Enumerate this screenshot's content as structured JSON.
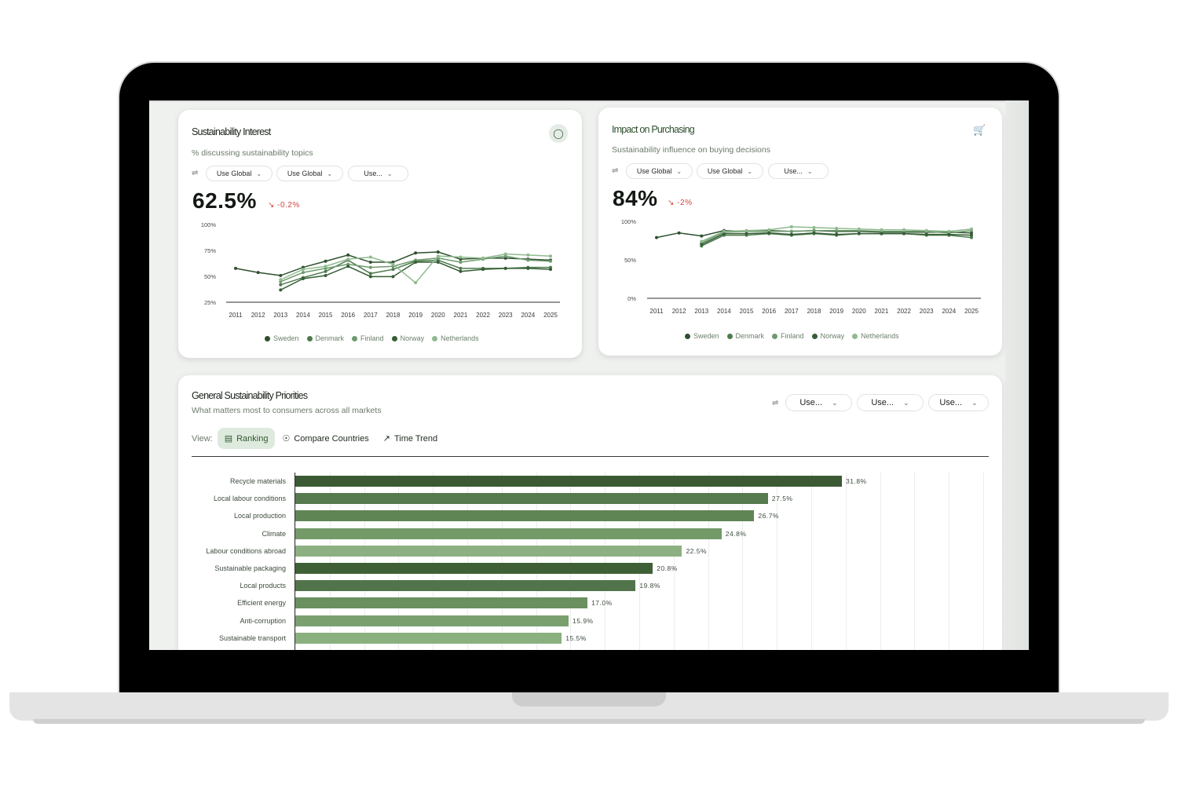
{
  "cards": {
    "interest": {
      "title": "Sustainability Interest",
      "subtitle": "% discussing sustainability topics",
      "icon": "chat-bubble-icon",
      "filters": [
        "Use Global",
        "Use Global",
        "Use..."
      ],
      "value": "62.5%",
      "delta": "-0.2%",
      "chart_data": {
        "type": "line",
        "x": [
          "2011",
          "2012",
          "2013",
          "2014",
          "2015",
          "2016",
          "2017",
          "2018",
          "2019",
          "2020",
          "2021",
          "2022",
          "2023",
          "2024",
          "2025"
        ],
        "ylim": [
          25,
          100
        ],
        "yticks": [
          "100%",
          "75%",
          "50%",
          "25%"
        ],
        "legend_position": "bottom",
        "series": [
          {
            "name": "Sweden",
            "color": "#2f4f2f",
            "values": [
              58,
              54,
              51,
              59,
              65,
              71,
              64,
              64,
              73,
              74,
              67,
              68,
              68,
              67,
              66
            ]
          },
          {
            "name": "Denmark",
            "color": "#4e7a4e",
            "values": [
              null,
              null,
              42,
              49,
              55,
              66,
              53,
              57,
              65,
              66,
              58,
              58,
              58,
              59,
              59
            ]
          },
          {
            "name": "Finland",
            "color": "#6e9a6e",
            "values": [
              null,
              null,
              45,
              54,
              58,
              62,
              59,
              60,
              66,
              68,
              64,
              67,
              70,
              66,
              65
            ]
          },
          {
            "name": "Norway",
            "color": "#355e35",
            "values": [
              null,
              null,
              37,
              48,
              51,
              60,
              50,
              50,
              64,
              64,
              55,
              57,
              58,
              58,
              57
            ]
          },
          {
            "name": "Netherlands",
            "color": "#8fba8f",
            "values": [
              null,
              null,
              47,
              57,
              60,
              67,
              69,
              62,
              44,
              70,
              69,
              68,
              72,
              71,
              70
            ]
          }
        ]
      }
    },
    "purchasing": {
      "title": "Impact on Purchasing",
      "subtitle": "Sustainability influence on buying decisions",
      "icon": "cart-icon",
      "filters": [
        "Use Global",
        "Use Global",
        "Use..."
      ],
      "value": "84%",
      "delta": "-2%",
      "chart_data": {
        "type": "line",
        "x": [
          "2011",
          "2012",
          "2013",
          "2014",
          "2015",
          "2016",
          "2017",
          "2018",
          "2019",
          "2020",
          "2021",
          "2022",
          "2023",
          "2024",
          "2025"
        ],
        "ylim": [
          0,
          100
        ],
        "yticks": [
          "100%",
          "50%",
          "0%"
        ],
        "legend_position": "bottom",
        "series": [
          {
            "name": "Sweden",
            "color": "#2f4f2f",
            "values": [
              79,
              85,
              81,
              88,
              87,
              88,
              87,
              88,
              87,
              87,
              86,
              86,
              86,
              86,
              85
            ]
          },
          {
            "name": "Denmark",
            "color": "#4e7a4e",
            "values": [
              null,
              null,
              68,
              82,
              82,
              84,
              82,
              84,
              82,
              84,
              84,
              84,
              82,
              82,
              79
            ]
          },
          {
            "name": "Finland",
            "color": "#6e9a6e",
            "values": [
              null,
              null,
              72,
              86,
              87,
              87,
              87,
              88,
              88,
              88,
              87,
              87,
              87,
              85,
              88
            ]
          },
          {
            "name": "Norway",
            "color": "#355e35",
            "values": [
              null,
              null,
              70,
              84,
              84,
              85,
              83,
              85,
              83,
              84,
              84,
              84,
              83,
              83,
              82
            ]
          },
          {
            "name": "Netherlands",
            "color": "#8fba8f",
            "values": [
              null,
              null,
              74,
              87,
              88,
              89,
              93,
              92,
              91,
              90,
              89,
              89,
              88,
              87,
              90
            ]
          }
        ]
      }
    }
  },
  "priorities": {
    "title": "General Sustainability Priorities",
    "subtitle": "What matters most to consumers across all markets",
    "filters": [
      "Use...",
      "Use...",
      "Use..."
    ],
    "view_label": "View:",
    "tabs": [
      {
        "label": "Ranking",
        "icon": "bar-chart-icon",
        "active": true
      },
      {
        "label": "Compare Countries",
        "icon": "globe-icon",
        "active": false
      },
      {
        "label": "Time Trend",
        "icon": "trend-icon",
        "active": false
      }
    ],
    "chart_data": {
      "type": "bar",
      "orientation": "horizontal",
      "xlim": [
        0,
        46
      ],
      "categories": [
        "Recycle materials",
        "Local labour conditions",
        "Local production",
        "Climate",
        "Labour conditions abroad",
        "Sustainable packaging",
        "Local products",
        "Efficient energy",
        "Anti-corruption",
        "Sustainable transport"
      ],
      "values": [
        31.8,
        27.5,
        26.7,
        24.8,
        22.5,
        20.8,
        19.8,
        17.0,
        15.9,
        15.5
      ],
      "value_labels": [
        "31.8%",
        "27.5%",
        "26.7%",
        "24.8%",
        "22.5%",
        "20.8%",
        "19.8%",
        "17.0%",
        "15.9%",
        "15.5%"
      ],
      "colors": [
        "#3b5a34",
        "#56794d",
        "#5f8555",
        "#739a68",
        "#8db083",
        "#3f6036",
        "#52744a",
        "#6a9060",
        "#7aa070",
        "#8ab07f"
      ],
      "grid": true
    }
  }
}
